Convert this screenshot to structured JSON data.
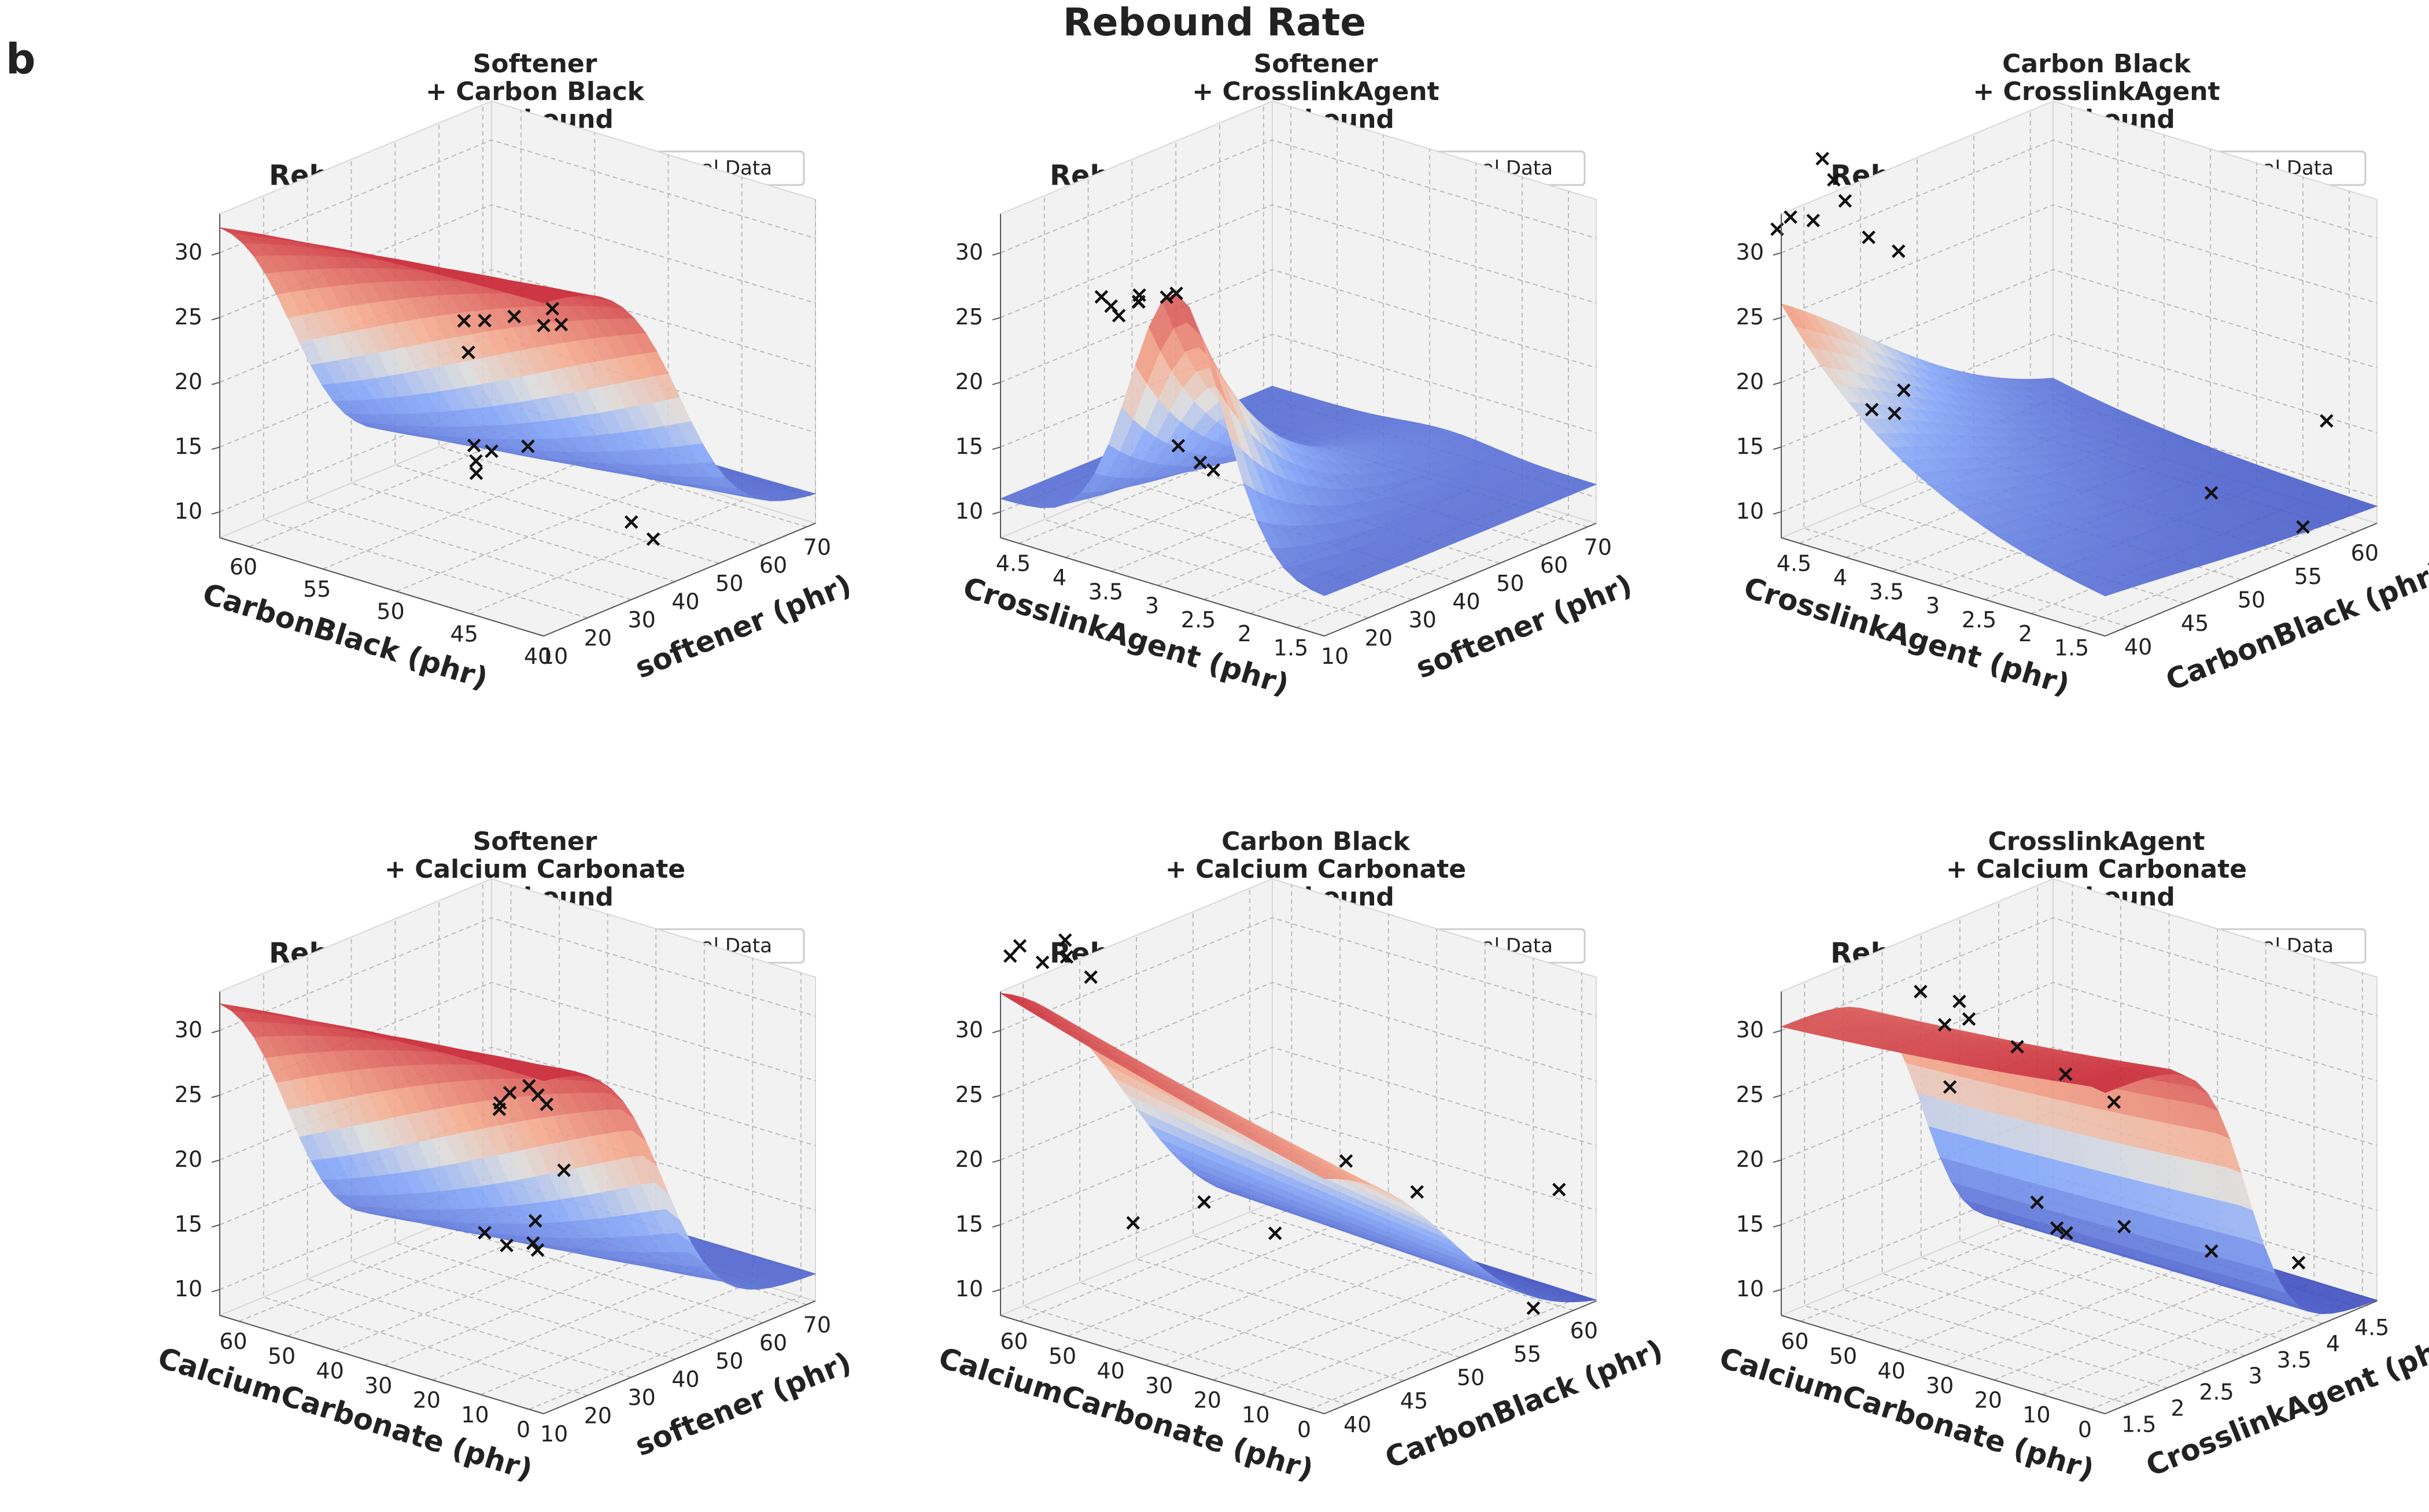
{
  "panel_label": "b",
  "figure_title": "Rebound Rate",
  "chart_data": [
    {
      "type": "surface3d",
      "title": [
        "Softener",
        "+ Carbon Black",
        "+ Rebound"
      ],
      "zlabel": "ReboundRate (%)",
      "legend": "Original Data",
      "legend_position": "top-right",
      "xlabel": "CarbonBlack (phr)",
      "ylabel": "softener (phr)",
      "x_ticks": [
        40,
        45,
        50,
        55,
        60
      ],
      "y_ticks": [
        10,
        20,
        30,
        40,
        50,
        60,
        70
      ],
      "z_ticks": [
        10,
        15,
        20,
        25,
        30
      ],
      "xlim": [
        40,
        62
      ],
      "ylim": [
        10,
        72
      ],
      "zlim": [
        8,
        33
      ],
      "surface": {
        "a": 10,
        "b": 24,
        "x0": 40,
        "y0": 10,
        "kx": 0.03,
        "ky": 0.045
      },
      "points": [
        [
          40,
          12,
          33
        ],
        [
          40,
          10,
          32
        ],
        [
          40,
          14,
          31.5
        ],
        [
          42,
          10,
          32
        ],
        [
          44,
          10,
          31
        ],
        [
          46,
          12,
          30
        ],
        [
          40,
          30,
          14
        ],
        [
          40,
          35,
          12
        ],
        [
          50,
          40,
          15
        ],
        [
          55,
          45,
          10.5
        ],
        [
          58,
          55,
          9
        ],
        [
          60,
          60,
          16
        ],
        [
          62,
          68,
          7
        ],
        [
          62,
          72,
          6
        ]
      ]
    },
    {
      "type": "surface3d",
      "title": [
        "Softener",
        "+ CrosslinkAgent",
        "+ Rebound"
      ],
      "zlabel": "ReboundRate (%)",
      "legend": "Original Data",
      "legend_position": "top-right",
      "xlabel": "CrosslinkAgent (phr)",
      "ylabel": "softener (phr)",
      "x_ticks": [
        1.5,
        2.0,
        2.5,
        3.0,
        3.5,
        4.0,
        4.5
      ],
      "y_ticks": [
        10,
        20,
        30,
        40,
        50,
        60,
        70
      ],
      "z_ticks": [
        10,
        15,
        20,
        25,
        30
      ],
      "xlim": [
        1.2,
        4.7
      ],
      "ylim": [
        10,
        72
      ],
      "zlim": [
        8,
        33
      ],
      "surface": {
        "a": 11,
        "b": 20,
        "x0": 2.8,
        "y0": 10,
        "kx": 0.9,
        "ky": 0.045,
        "bump": true
      },
      "points": [
        [
          2.8,
          10,
          31
        ],
        [
          3.0,
          12,
          30
        ],
        [
          3.2,
          10,
          30
        ],
        [
          3.3,
          12,
          29
        ],
        [
          3.4,
          14,
          28.5
        ],
        [
          3.6,
          12,
          28
        ],
        [
          3.8,
          14,
          28
        ],
        [
          3.8,
          18,
          26
        ],
        [
          4.2,
          40,
          12
        ],
        [
          4.2,
          45,
          10
        ],
        [
          4.2,
          48,
          9
        ]
      ]
    },
    {
      "type": "surface3d",
      "title": [
        "Carbon Black",
        "+ CrosslinkAgent",
        "+ Rebound"
      ],
      "zlabel": "ReboundRate (%)",
      "legend": "Original Data",
      "legend_position": "top-right",
      "xlabel": "CrosslinkAgent (phr)",
      "ylabel": "CarbonBlack (phr)",
      "x_ticks": [
        1.5,
        2.0,
        2.5,
        3.0,
        3.5,
        4.0,
        4.5
      ],
      "y_ticks": [
        40,
        45,
        50,
        55,
        60
      ],
      "z_ticks": [
        10,
        15,
        20,
        25,
        30
      ],
      "xlim": [
        1.2,
        4.7
      ],
      "ylim": [
        38,
        62
      ],
      "zlim": [
        8,
        33
      ],
      "surface": {
        "a": 9,
        "b": 24,
        "x0": 4.7,
        "y0": 38,
        "kx": 0.6,
        "ky": 0.05,
        "shape": "ramp"
      },
      "points": [
        [
          1.5,
          60,
          16
        ],
        [
          2.0,
          62,
          6
        ],
        [
          2.5,
          58,
          9
        ],
        [
          4.5,
          40,
          37
        ],
        [
          4.5,
          41,
          35
        ],
        [
          4.5,
          42,
          33
        ],
        [
          4.6,
          40,
          32
        ],
        [
          4.6,
          38,
          33
        ],
        [
          4.0,
          40,
          32
        ],
        [
          3.8,
          41,
          31
        ],
        [
          4.5,
          36,
          33
        ],
        [
          4.6,
          48,
          16
        ],
        [
          4.7,
          48,
          14
        ],
        [
          4.7,
          46,
          15
        ]
      ]
    },
    {
      "type": "surface3d",
      "title": [
        "Softener",
        "+ Calcium Carbonate",
        "+ Rebound"
      ],
      "zlabel": "ReboundRate (%)",
      "legend": "Original Data",
      "legend_position": "top-right",
      "xlabel": "CalciumCarbonate (phr)",
      "ylabel": "softener (phr)",
      "x_ticks": [
        0,
        10,
        20,
        30,
        40,
        50,
        60
      ],
      "y_ticks": [
        10,
        20,
        30,
        40,
        50,
        60,
        70
      ],
      "z_ticks": [
        10,
        15,
        20,
        25,
        30
      ],
      "xlim": [
        -3,
        64
      ],
      "ylim": [
        10,
        72
      ],
      "zlim": [
        8,
        33
      ],
      "surface": {
        "a": 10,
        "b": 24,
        "x0": 0,
        "y0": 10,
        "kx": 0.01,
        "ky": 0.05
      },
      "points": [
        [
          0,
          10,
          33
        ],
        [
          0,
          12,
          32
        ],
        [
          0,
          14,
          31
        ],
        [
          4,
          10,
          32
        ],
        [
          6,
          10,
          31
        ],
        [
          8,
          12,
          30
        ],
        [
          20,
          40,
          20
        ],
        [
          30,
          45,
          12
        ],
        [
          35,
          50,
          13
        ],
        [
          40,
          55,
          10
        ],
        [
          50,
          60,
          8
        ],
        [
          60,
          66,
          7
        ]
      ]
    },
    {
      "type": "surface3d",
      "title": [
        "Carbon Black",
        "+ Calcium Carbonate",
        "+ Rebound"
      ],
      "zlabel": "ReboundRate (%)",
      "legend": "Original Data",
      "legend_position": "top-right",
      "xlabel": "CalciumCarbonate (phr)",
      "ylabel": "CarbonBlack (phr)",
      "x_ticks": [
        0,
        10,
        20,
        30,
        40,
        50,
        60
      ],
      "y_ticks": [
        40,
        45,
        50,
        55,
        60
      ],
      "z_ticks": [
        10,
        15,
        20,
        25,
        30
      ],
      "xlim": [
        -3,
        64
      ],
      "ylim": [
        38,
        62
      ],
      "zlim": [
        8,
        33
      ],
      "surface": {
        "a": 7,
        "b": 28,
        "x0": 64,
        "y0": 38,
        "kx": 0.015,
        "ky": 0.09,
        "shape": "ridge"
      },
      "points": [
        [
          0,
          60,
          17
        ],
        [
          10,
          62,
          6
        ],
        [
          20,
          56,
          16
        ],
        [
          30,
          54,
          18
        ],
        [
          40,
          52,
          12
        ],
        [
          50,
          50,
          14
        ],
        [
          60,
          48,
          12
        ],
        [
          60,
          42,
          36
        ],
        [
          60,
          40,
          35
        ],
        [
          60,
          38,
          37
        ],
        [
          62,
          38,
          36
        ],
        [
          55,
          40,
          36
        ],
        [
          50,
          40,
          35
        ]
      ]
    },
    {
      "type": "surface3d",
      "title": [
        "CrosslinkAgent",
        "+ Calcium Carbonate",
        "+ Rebound"
      ],
      "zlabel": "ReboundRate (%)",
      "legend": "Original Data",
      "legend_position": "top-right",
      "xlabel": "CalciumCarbonate (phr)",
      "ylabel": "CrosslinkAgent (phr)",
      "x_ticks": [
        0,
        10,
        20,
        30,
        40,
        50,
        60
      ],
      "y_ticks": [
        1.5,
        2.0,
        2.5,
        3.0,
        3.5,
        4.0,
        4.5
      ],
      "z_ticks": [
        10,
        15,
        20,
        25,
        30
      ],
      "xlim": [
        -3,
        64
      ],
      "ylim": [
        1.2,
        4.7
      ],
      "zlim": [
        8,
        33
      ],
      "surface": {
        "a": 8,
        "b": 25,
        "x0": 0,
        "y0": 1.2,
        "kx": 0.012,
        "ky": 1.2,
        "shape": "step"
      },
      "points": [
        [
          0,
          1.5,
          31
        ],
        [
          10,
          1.5,
          32
        ],
        [
          20,
          1.5,
          33
        ],
        [
          30,
          1.5,
          34
        ],
        [
          40,
          1.5,
          35
        ],
        [
          40,
          2.0,
          33
        ],
        [
          35,
          1.5,
          33
        ],
        [
          50,
          2.5,
          24
        ],
        [
          40,
          3.0,
          15
        ],
        [
          30,
          3.5,
          13
        ],
        [
          20,
          4.0,
          11
        ],
        [
          10,
          4.5,
          10
        ],
        [
          50,
          4.0,
          9
        ],
        [
          60,
          4.5,
          7
        ]
      ]
    }
  ]
}
